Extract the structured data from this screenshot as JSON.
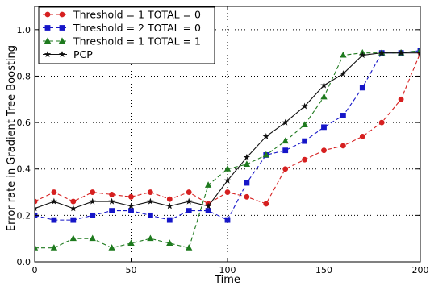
{
  "chart_data": {
    "type": "line",
    "title": "",
    "xlabel": "Time",
    "ylabel": "Error rate in Gradient Tree Boosting",
    "xlim": [
      0,
      200
    ],
    "ylim": [
      0,
      1.1
    ],
    "xticks": [
      0,
      50,
      100,
      150,
      200
    ],
    "yticks": [
      0.0,
      0.2,
      0.4,
      0.6,
      0.8,
      1.0
    ],
    "xtick_labels": [
      "0",
      "50",
      "100",
      "150",
      "200"
    ],
    "ytick_labels": [
      "0.0",
      "0.2",
      "0.4",
      "0.6",
      "0.8",
      "1.0"
    ],
    "grid": true,
    "grid_style": "dotted",
    "legend_placement": "top-left",
    "series": [
      {
        "name": "Threshold = 1    TOTAL = 0",
        "color": "#d62020",
        "marker": "circle",
        "linestyle": "dashed",
        "x": [
          0,
          10,
          20,
          30,
          40,
          50,
          60,
          70,
          80,
          90,
          100,
          110,
          120,
          130,
          140,
          150,
          160,
          170,
          180,
          190,
          200
        ],
        "y": [
          0.26,
          0.3,
          0.26,
          0.3,
          0.29,
          0.28,
          0.3,
          0.27,
          0.3,
          0.25,
          0.3,
          0.28,
          0.25,
          0.4,
          0.44,
          0.48,
          0.5,
          0.54,
          0.6,
          0.7,
          0.9
        ]
      },
      {
        "name": "Threshold = 2    TOTAL = 0",
        "color": "#1616c8",
        "marker": "square",
        "linestyle": "dashed",
        "x": [
          0,
          10,
          20,
          30,
          40,
          50,
          60,
          70,
          80,
          90,
          100,
          110,
          120,
          130,
          140,
          150,
          160,
          170,
          180,
          190,
          200
        ],
        "y": [
          0.2,
          0.18,
          0.18,
          0.2,
          0.22,
          0.22,
          0.2,
          0.18,
          0.22,
          0.22,
          0.18,
          0.34,
          0.46,
          0.48,
          0.52,
          0.58,
          0.63,
          0.75,
          0.9,
          0.9,
          0.91
        ]
      },
      {
        "name": "Threshold = 1    TOTAL = 1",
        "color": "#1e7a1e",
        "marker": "triangle",
        "linestyle": "dashed",
        "x": [
          0,
          10,
          20,
          30,
          40,
          50,
          60,
          70,
          80,
          90,
          100,
          110,
          120,
          130,
          140,
          150,
          160,
          170,
          180,
          190,
          200
        ],
        "y": [
          0.06,
          0.06,
          0.1,
          0.1,
          0.06,
          0.08,
          0.1,
          0.08,
          0.06,
          0.33,
          0.4,
          0.42,
          0.46,
          0.52,
          0.59,
          0.71,
          0.89,
          0.9,
          0.9,
          0.9,
          0.91
        ]
      },
      {
        "name": "PCP",
        "color": "#111111",
        "marker": "star",
        "linestyle": "solid",
        "x": [
          0,
          10,
          20,
          30,
          40,
          50,
          60,
          70,
          80,
          90,
          100,
          110,
          120,
          130,
          140,
          150,
          160,
          170,
          180,
          190,
          200
        ],
        "y": [
          0.23,
          0.26,
          0.23,
          0.26,
          0.26,
          0.24,
          0.26,
          0.24,
          0.26,
          0.24,
          0.35,
          0.45,
          0.54,
          0.6,
          0.67,
          0.76,
          0.81,
          0.89,
          0.9,
          0.9,
          0.9
        ]
      }
    ]
  }
}
